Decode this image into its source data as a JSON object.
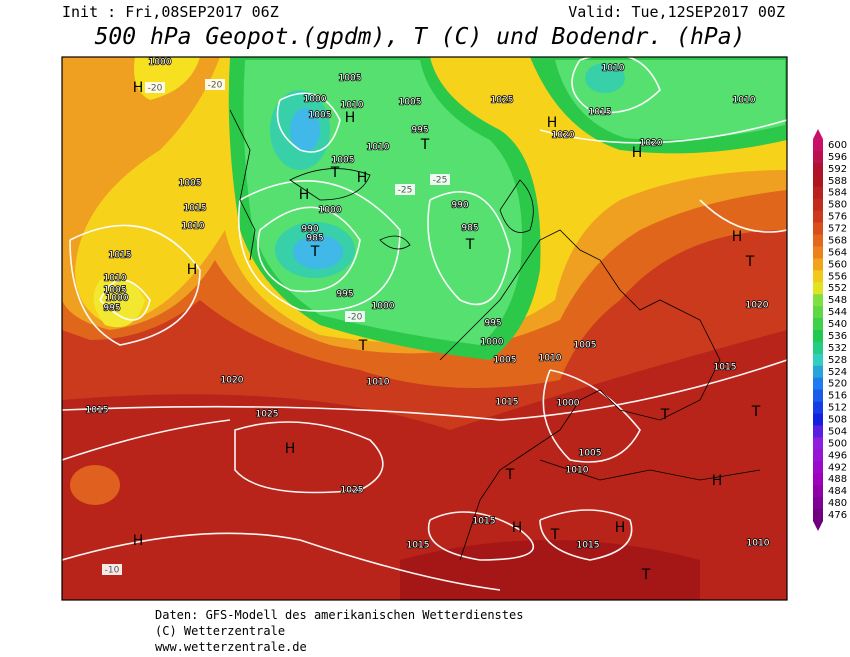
{
  "header": {
    "init": "Init : Fri,08SEP2017 06Z",
    "valid": "Valid: Tue,12SEP2017 00Z",
    "title": "500 hPa Geopot.(gpdm), T (C) und Bodendr. (hPa)"
  },
  "colorbar": {
    "ticks": [
      600,
      596,
      592,
      588,
      584,
      580,
      576,
      572,
      568,
      564,
      560,
      556,
      552,
      548,
      544,
      540,
      536,
      532,
      528,
      524,
      520,
      516,
      512,
      508,
      504,
      500,
      496,
      492,
      488,
      484,
      480,
      476
    ]
  },
  "map": {
    "labels": [
      "1000",
      "H",
      "-20",
      "-20",
      "1005",
      "1000",
      "1005",
      "H",
      "1010",
      "1005",
      "995",
      "T",
      "1010",
      "1005",
      "T",
      "H",
      "H",
      "-25",
      "-25",
      "1000",
      "990",
      "985",
      "T",
      "990",
      "985",
      "T",
      "995",
      "1000",
      "-20",
      "995",
      "T",
      "1000",
      "1005",
      "1010",
      "1005",
      "1010",
      "1015",
      "1000",
      "1005",
      "1010",
      "T",
      "H",
      "1025",
      "1025",
      "1020",
      "1015",
      "H",
      "-10",
      "1015",
      "1015",
      "H",
      "T",
      "1015",
      "H",
      "T",
      "1010",
      "T",
      "H",
      "T",
      "H",
      "T",
      "1020",
      "1015",
      "H",
      "1020",
      "1015",
      "1010",
      "1010",
      "H",
      "1020",
      "1025",
      "1015",
      "1010",
      "1005",
      "1015",
      "1010",
      "1005",
      "1000",
      "995",
      "H"
    ]
  },
  "footer": {
    "line1": "Daten: GFS-Modell des amerikanischen Wetterdienstes",
    "line2": "(C) Wetterzentrale",
    "line3": "www.wetterzentrale.de"
  }
}
